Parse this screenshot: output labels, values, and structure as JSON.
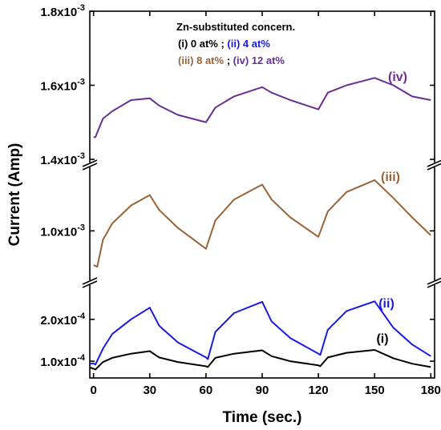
{
  "chart_data": {
    "type": "line",
    "xlabel": "Time (sec.)",
    "ylabel": "Current (Amp)",
    "xlim": [
      -2,
      182
    ],
    "x_ticks": [
      "0",
      "30",
      "60",
      "90",
      "120",
      "150",
      "180"
    ],
    "broken_y_axis": true,
    "panels": [
      {
        "name": "top",
        "ylim": [
          0.0014,
          0.0018
        ],
        "y_ticks": [
          {
            "value": 0.0014,
            "label": "1.4x10",
            "exp": "-3"
          },
          {
            "value": 0.0016,
            "label": "1.6x10",
            "exp": "-3"
          },
          {
            "value": 0.0018,
            "label": "1.8x10",
            "exp": "-3"
          }
        ]
      },
      {
        "name": "middle",
        "ylim": [
          0.00068,
          0.00142
        ],
        "y_ticks": [
          {
            "value": 0.001,
            "label": "1.0x10",
            "exp": "-3"
          }
        ]
      },
      {
        "name": "bottom",
        "ylim": [
          6e-05,
          0.00028
        ],
        "y_ticks": [
          {
            "value": 0.0001,
            "label": "1.0x10",
            "exp": "-4"
          },
          {
            "value": 0.0002,
            "label": "2.0x10",
            "exp": "-4"
          }
        ]
      }
    ],
    "legend": {
      "title": "Zn-substituted concern.",
      "entries": [
        {
          "text": "(i) 0 at%",
          "color": "#000000"
        },
        {
          "text": "; ",
          "color": "#000000"
        },
        {
          "text": "(ii) 4 at%",
          "color": "#1a1ae6"
        },
        {
          "text": "(iii) 8 at%",
          "color": "#9a6335"
        },
        {
          "text": "; ",
          "color": "#000000"
        },
        {
          "text": "(iv) 12 at%",
          "color": "#6a2e91"
        }
      ]
    },
    "series": [
      {
        "name": "(iv)",
        "color": "#6a2e91",
        "panel": "top",
        "x": [
          0,
          1,
          5,
          10,
          20,
          30,
          35,
          45,
          60,
          65,
          75,
          90,
          95,
          105,
          120,
          125,
          135,
          150,
          160,
          170,
          180
        ],
        "y": [
          0.00146,
          0.00146,
          0.00151,
          0.00153,
          0.00156,
          0.001565,
          0.001545,
          0.00152,
          0.0015,
          0.00154,
          0.00157,
          0.001595,
          0.00158,
          0.00156,
          0.001535,
          0.00158,
          0.0016,
          0.00162,
          0.0016,
          0.00157,
          0.00156
        ]
      },
      {
        "name": "(iii)",
        "color": "#9a6335",
        "panel": "middle",
        "x": [
          0,
          2,
          5,
          10,
          20,
          30,
          35,
          45,
          60,
          65,
          75,
          90,
          95,
          105,
          120,
          125,
          135,
          150,
          160,
          170,
          180
        ],
        "y": [
          0.00077,
          0.00076,
          0.00094,
          0.00105,
          0.00117,
          0.00124,
          0.00114,
          0.00102,
          0.00088,
          0.00107,
          0.00121,
          0.00131,
          0.00121,
          0.00109,
          0.00096,
          0.00113,
          0.00126,
          0.00134,
          0.00122,
          0.00109,
          0.00097
        ]
      },
      {
        "name": "(ii)",
        "color": "#1a1ae6",
        "panel": "bottom",
        "x": [
          -2,
          0,
          1,
          5,
          10,
          20,
          30,
          35,
          45,
          60,
          61,
          65,
          75,
          90,
          95,
          105,
          120,
          121,
          125,
          135,
          150,
          160,
          170,
          180
        ],
        "y": [
          9.4e-05,
          9.5e-05,
          9.2e-05,
          0.00013,
          0.000165,
          0.0002,
          0.000228,
          0.000185,
          0.000145,
          0.000109,
          0.000105,
          0.00017,
          0.000215,
          0.000242,
          0.000195,
          0.000155,
          0.000118,
          0.000115,
          0.000175,
          0.00022,
          0.000243,
          0.00018,
          0.00014,
          0.000112
        ]
      },
      {
        "name": "(i)",
        "color": "#000000",
        "panel": "bottom",
        "x": [
          -2,
          0,
          1,
          5,
          10,
          20,
          30,
          35,
          45,
          60,
          61,
          65,
          75,
          90,
          95,
          105,
          120,
          121,
          125,
          135,
          150,
          160,
          170,
          180
        ],
        "y": [
          8.5e-05,
          8.2e-05,
          8e-05,
          9.8e-05,
          0.000108,
          0.000118,
          0.000124,
          0.000109,
          9.8e-05,
          8.8e-05,
          8.6e-05,
          0.000108,
          0.000118,
          0.000126,
          0.000112,
          0.0001,
          9e-05,
          8.8e-05,
          0.000109,
          0.00012,
          0.000127,
          0.000107,
          9.4e-05,
          8.6e-05
        ]
      }
    ]
  }
}
